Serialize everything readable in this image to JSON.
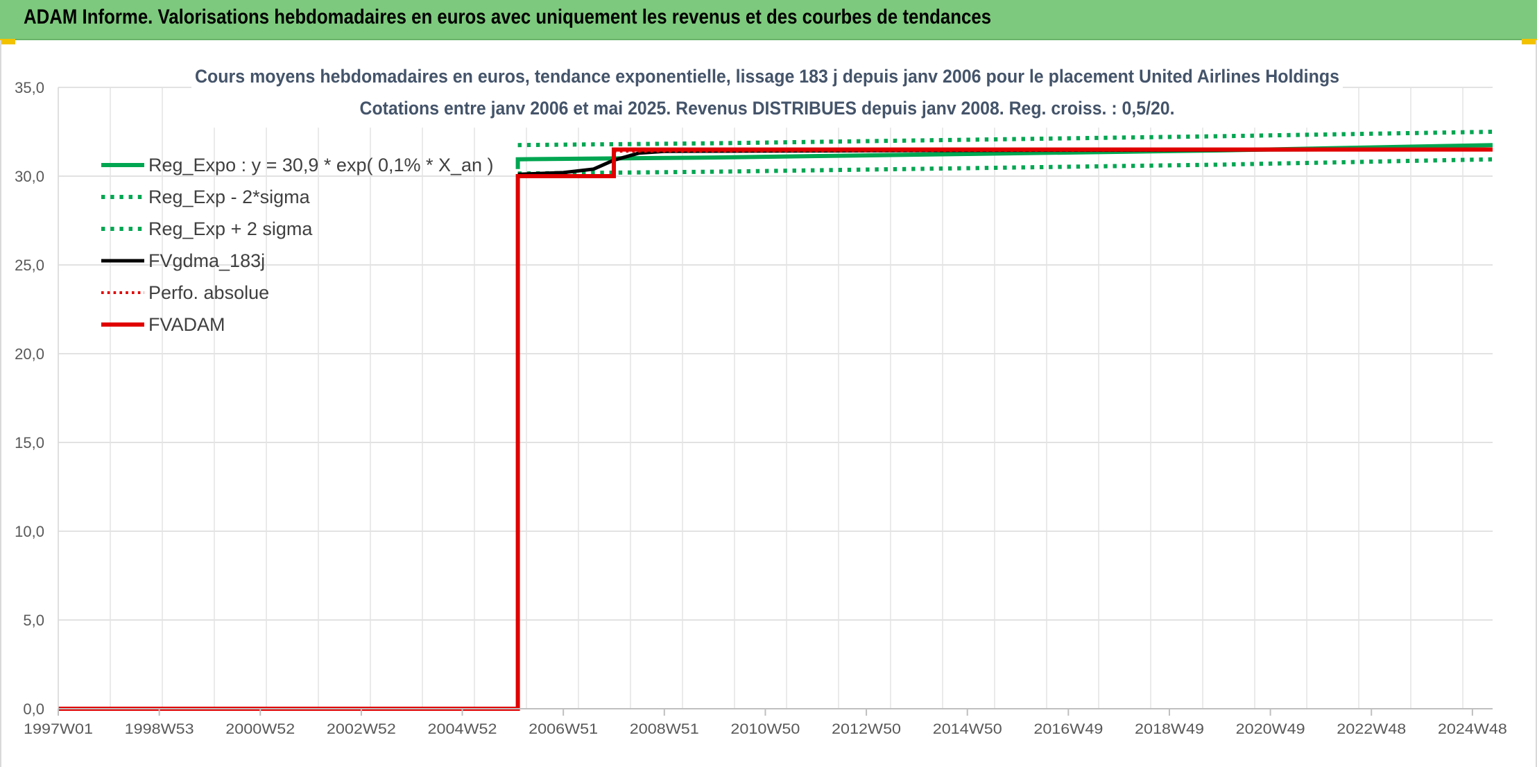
{
  "header": {
    "title": "ADAM Informe. Valorisations hebdomadaires en euros avec uniquement les revenus et des courbes de tendances",
    "background": "#7dc97d",
    "corner_color": "#f2c200"
  },
  "chart_data": {
    "type": "line",
    "title": "Cours moyens hebdomadaires en euros, tendance exponentielle, lissage 183 j depuis janv 2006 pour le placement United Airlines Holdings",
    "subtitle": "Cotations entre janv 2006 et mai 2025. Revenus DISTRIBUES depuis janv 2008. Reg. croiss. : 0,5/20.",
    "xlabel": "",
    "ylabel": "",
    "ylim": [
      0,
      35
    ],
    "y_ticks": [
      "0,0",
      "5,0",
      "10,0",
      "15,0",
      "20,0",
      "25,0",
      "30,0",
      "35,0"
    ],
    "x_range": [
      1997.0,
      2025.4
    ],
    "x_ticks": [
      {
        "label": "1997W01",
        "x": 1997.0
      },
      {
        "label": "1998W53",
        "x": 1999.0
      },
      {
        "label": "2000W52",
        "x": 2001.0
      },
      {
        "label": "2002W52",
        "x": 2003.0
      },
      {
        "label": "2004W52",
        "x": 2005.0
      },
      {
        "label": "2006W51",
        "x": 2007.0
      },
      {
        "label": "2008W51",
        "x": 2009.0
      },
      {
        "label": "2010W50",
        "x": 2011.0
      },
      {
        "label": "2012W50",
        "x": 2013.0
      },
      {
        "label": "2014W50",
        "x": 2015.0
      },
      {
        "label": "2016W49",
        "x": 2017.0
      },
      {
        "label": "2018W49",
        "x": 2019.0
      },
      {
        "label": "2020W49",
        "x": 2021.0
      },
      {
        "label": "2022W48",
        "x": 2023.0
      },
      {
        "label": "2024W48",
        "x": 2025.0
      }
    ],
    "grid": true,
    "legend_position": "top-left",
    "series": [
      {
        "name": "Reg_Expo : y = 30,9 * exp( 0,1% *  X_an )",
        "color": "#00a651",
        "style": "solid",
        "width": 6,
        "points": [
          [
            2006.1,
            30.4
          ],
          [
            2006.1,
            30.95
          ],
          [
            2010,
            31.05
          ],
          [
            2015,
            31.25
          ],
          [
            2020,
            31.45
          ],
          [
            2025.4,
            31.75
          ]
        ]
      },
      {
        "name": "Reg_Exp - 2*sigma",
        "color": "#00a651",
        "style": "dotted",
        "width": 6,
        "points": [
          [
            2006.1,
            30.15
          ],
          [
            2010,
            30.25
          ],
          [
            2015,
            30.45
          ],
          [
            2020,
            30.65
          ],
          [
            2025.4,
            30.95
          ]
        ]
      },
      {
        "name": "Reg_Exp + 2 sigma",
        "color": "#00a651",
        "style": "dotted",
        "width": 6,
        "points": [
          [
            2006.1,
            31.75
          ],
          [
            2010,
            31.85
          ],
          [
            2015,
            32.05
          ],
          [
            2020,
            32.25
          ],
          [
            2025.4,
            32.5
          ]
        ]
      },
      {
        "name": "FVgdma_183j",
        "color": "#000000",
        "style": "solid",
        "width": 5,
        "points": [
          [
            2006.1,
            30.1
          ],
          [
            2007.0,
            30.2
          ],
          [
            2007.6,
            30.4
          ],
          [
            2008.0,
            30.9
          ],
          [
            2008.5,
            31.3
          ],
          [
            2009.0,
            31.4
          ],
          [
            2015,
            31.45
          ],
          [
            2025.4,
            31.5
          ]
        ]
      },
      {
        "name": "Perfo. absolue",
        "color": "#e00000",
        "style": "dotted",
        "width": 4,
        "points": [
          [
            2008.0,
            31.4
          ],
          [
            2025.4,
            31.5
          ]
        ]
      },
      {
        "name": "FVADAM",
        "color": "#e00000",
        "style": "solid",
        "width": 6,
        "points": [
          [
            1997.0,
            0.0
          ],
          [
            2006.1,
            0.0
          ],
          [
            2006.1,
            30.0
          ],
          [
            2008.0,
            30.0
          ],
          [
            2008.0,
            31.5
          ],
          [
            2025.4,
            31.5
          ]
        ]
      }
    ]
  }
}
